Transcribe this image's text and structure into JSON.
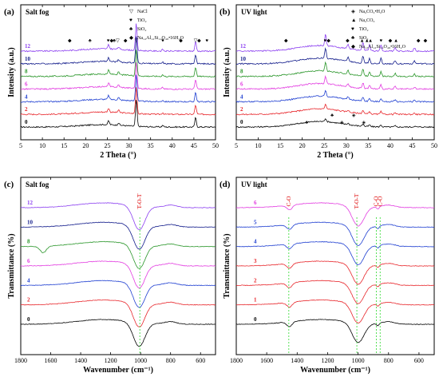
{
  "colors": {
    "0": "#000000",
    "1": "#e8262b",
    "2": "#e8262b",
    "3": "#e8262b",
    "4": "#1f3fd1",
    "5": "#1f3fd1",
    "6": "#e23be0",
    "8": "#2a962a",
    "10": "#101a8a",
    "12": "#8b3ff0",
    "guide": "#44dd44",
    "annot": "#dd0000"
  },
  "chart_data": [
    {
      "type": "line",
      "panel": "(a)",
      "title": "Salt fog",
      "xlabel": "2 Theta (°)",
      "ylabel": "Intensity (a.u.)",
      "xlim": [
        5,
        50
      ],
      "xticks": [
        "5",
        "10",
        "15",
        "20",
        "25",
        "30",
        "35",
        "40",
        "45",
        "50"
      ],
      "series_names": [
        "0",
        "2",
        "4",
        "6",
        "8",
        "10",
        "12"
      ],
      "legend": [
        {
          "sym": "▽",
          "text": "NaCl"
        },
        {
          "sym": "♥",
          "text": "TiO₂"
        },
        {
          "sym": "♣",
          "text": "SiO₂"
        },
        {
          "sym": "◆",
          "text": "Na₁₂Al₁₂Si₁₂O₄₈•16H₂O"
        }
      ],
      "peaks": [
        {
          "x": 25.3,
          "h": 5
        },
        {
          "x": 31.7,
          "h": 34
        },
        {
          "x": 45.4,
          "h": 12
        },
        {
          "x": 27.6,
          "h": 3
        },
        {
          "x": 37.8,
          "h": 2
        }
      ],
      "markers": [
        {
          "x": 16.3,
          "sym": "◆"
        },
        {
          "x": 21.0,
          "sym": "♣"
        },
        {
          "x": 25.2,
          "sym": "♥"
        },
        {
          "x": 26.0,
          "sym": "◆"
        },
        {
          "x": 26.6,
          "sym": "♣"
        },
        {
          "x": 27.4,
          "sym": "▽"
        },
        {
          "x": 29.2,
          "sym": "◆"
        },
        {
          "x": 31.7,
          "sym": "▽"
        },
        {
          "x": 37.8,
          "sym": "♥"
        },
        {
          "x": 42.0,
          "sym": "◆"
        },
        {
          "x": 45.4,
          "sym": "▽"
        },
        {
          "x": 46.2,
          "sym": "◆"
        },
        {
          "x": 48.0,
          "sym": "♥"
        }
      ]
    },
    {
      "type": "line",
      "panel": "(b)",
      "title": "UV light",
      "xlabel": "2 Theta (°)",
      "ylabel": "Intensity (a.u.)",
      "xlim": [
        5,
        50
      ],
      "xticks": [
        "5",
        "10",
        "15",
        "20",
        "25",
        "30",
        "35",
        "40",
        "45",
        "50"
      ],
      "series_names": [
        "0",
        "2",
        "4",
        "6",
        "8",
        "10",
        "12"
      ],
      "legend": [
        {
          "sym": "◈",
          "text": "Na₂CO₃•H₂O"
        },
        {
          "sym": "▲",
          "text": "Na₂CO₃"
        },
        {
          "sym": "♥",
          "text": "TiO₂"
        },
        {
          "sym": "♣",
          "text": "SiO₂"
        },
        {
          "sym": "◆",
          "text": "Na₁₂Al₁₂Si₁₂O₄₈•16H₂O"
        }
      ],
      "peaks": [
        {
          "x": 25.3,
          "h": 14
        },
        {
          "x": 33.8,
          "h": 10
        },
        {
          "x": 37.9,
          "h": 8
        },
        {
          "x": 35.3,
          "h": 7
        },
        {
          "x": 30.4,
          "h": 6
        },
        {
          "x": 41.1,
          "h": 5
        },
        {
          "x": 45.5,
          "h": 4
        }
      ],
      "markers": [
        {
          "x": 16.3,
          "sym": "◆"
        },
        {
          "x": 25.2,
          "sym": "♥"
        },
        {
          "x": 26.0,
          "sym": "◆"
        },
        {
          "x": 30.3,
          "sym": "◆"
        },
        {
          "x": 33.6,
          "sym": "▲"
        },
        {
          "x": 34.7,
          "sym": "▲"
        },
        {
          "x": 35.5,
          "sym": "▲"
        },
        {
          "x": 37.9,
          "sym": "♥"
        },
        {
          "x": 40.0,
          "sym": "◆"
        },
        {
          "x": 41.3,
          "sym": "▲"
        },
        {
          "x": 46.4,
          "sym": "◆"
        },
        {
          "x": 48.0,
          "sym": "◆"
        }
      ],
      "low_markers": [
        {
          "x": 21.0,
          "sym": "♣"
        },
        {
          "x": 26.8,
          "sym": "♣"
        },
        {
          "x": 29.0,
          "sym": "◈"
        },
        {
          "x": 31.7,
          "sym": "◈"
        },
        {
          "x": 34.0,
          "sym": "◈"
        }
      ]
    },
    {
      "type": "line",
      "panel": "(c)",
      "title": "Salt fog",
      "xlabel": "Wavenumber (cm⁻¹)",
      "ylabel": "Transmittance (%)",
      "xlim": [
        1800,
        500
      ],
      "xticks": [
        "1800",
        "1600",
        "1400",
        "1200",
        "1000",
        "800",
        "600"
      ],
      "series_names": [
        "0",
        "2",
        "4",
        "6",
        "8",
        "10",
        "12"
      ],
      "guides": [
        {
          "x": 1005,
          "label": "T-O-T"
        }
      ],
      "dip": {
        "x": 1010,
        "w": 55
      }
    },
    {
      "type": "line",
      "panel": "(d)",
      "title": "UV light",
      "xlabel": "Wavenumber (cm⁻¹)",
      "ylabel": "Transmittance (%)",
      "xlim": [
        1800,
        500
      ],
      "xticks": [
        "1800",
        "1600",
        "1400",
        "1200",
        "1000",
        "800",
        "600"
      ],
      "series_names": [
        "0",
        "1",
        "2",
        "3",
        "4",
        "5",
        "6"
      ],
      "guides": [
        {
          "x": 1455,
          "label": "C-O"
        },
        {
          "x": 1008,
          "label": "T-O-T"
        },
        {
          "x": 880,
          "label": "C-O"
        },
        {
          "x": 855,
          "label": "C-O"
        }
      ],
      "dip": {
        "x": 1000,
        "w": 55
      }
    }
  ]
}
